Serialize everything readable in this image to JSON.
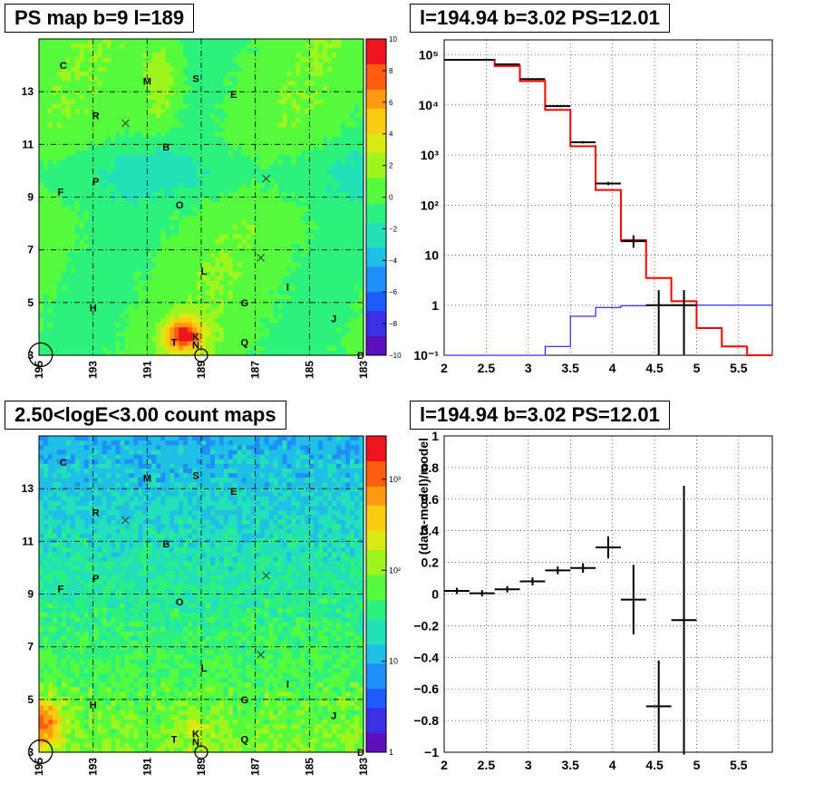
{
  "titles": {
    "ps_map": "PS map b=9 l=189",
    "spectrum": "l=194.94 b=3.02 PS=12.01",
    "count_map": "2.50<logE<3.00 count maps",
    "residual": "l=194.94 b=3.02 PS=12.01"
  },
  "chart_data": [
    {
      "type": "heatmap",
      "title": "PS map b=9 l=189",
      "xlabel": "",
      "ylabel": "",
      "x_ticks": [
        "195",
        "193",
        "191",
        "189",
        "187",
        "185",
        "183"
      ],
      "y_ticks": [
        "3",
        "5",
        "7",
        "9",
        "11",
        "13"
      ],
      "xlim": [
        195,
        183
      ],
      "ylim": [
        3,
        15
      ],
      "colorbar": {
        "min": -10,
        "max": 10,
        "scale": "linear",
        "ticks": [
          "10",
          "8",
          "6",
          "4",
          "2",
          "0",
          "−2",
          "−4",
          "−6",
          "−8",
          "−10"
        ]
      },
      "grid": true,
      "source_labels": [
        {
          "text": "C",
          "l": 194.1,
          "b": 14.0
        },
        {
          "text": "M",
          "l": 191.0,
          "b": 13.4
        },
        {
          "text": "S",
          "l": 189.2,
          "b": 13.5
        },
        {
          "text": "E",
          "l": 187.8,
          "b": 12.9
        },
        {
          "text": "R",
          "l": 192.9,
          "b": 12.1
        },
        {
          "text": "B",
          "l": 190.3,
          "b": 10.9
        },
        {
          "text": "P",
          "l": 192.9,
          "b": 9.6
        },
        {
          "text": "F",
          "l": 194.2,
          "b": 9.2
        },
        {
          "text": "O",
          "l": 189.8,
          "b": 8.7
        },
        {
          "text": "L",
          "l": 188.9,
          "b": 6.2
        },
        {
          "text": "I",
          "l": 185.8,
          "b": 5.6
        },
        {
          "text": "H",
          "l": 193.0,
          "b": 4.8
        },
        {
          "text": "G",
          "l": 187.4,
          "b": 5.0
        },
        {
          "text": "J",
          "l": 184.1,
          "b": 4.4
        },
        {
          "text": "T",
          "l": 190.0,
          "b": 3.5
        },
        {
          "text": "K",
          "l": 189.2,
          "b": 3.7
        },
        {
          "text": "Q",
          "l": 187.4,
          "b": 3.5
        },
        {
          "text": "N",
          "l": 189.2,
          "b": 3.4
        },
        {
          "text": "D",
          "l": 183.1,
          "b": 3.0
        }
      ],
      "cross_markers": [
        {
          "l": 191.8,
          "b": 11.8
        },
        {
          "l": 186.6,
          "b": 9.7
        },
        {
          "l": 186.8,
          "b": 6.7
        }
      ],
      "circle_markers": [
        {
          "l": 194.94,
          "b": 3.02
        },
        {
          "l": 189.0,
          "b": 3.0
        }
      ],
      "hotspot": {
        "l": 190.3,
        "b": 4.4,
        "value": 10
      }
    },
    {
      "type": "line",
      "title": "l=194.94 b=3.02 PS=12.01",
      "xlabel": "",
      "ylabel": "",
      "xlim": [
        2,
        5.9
      ],
      "ylim": [
        0.1,
        200000
      ],
      "y_scale": "log",
      "x_ticks": [
        "2",
        "2.5",
        "3",
        "3.5",
        "4",
        "4.5",
        "5",
        "5.5"
      ],
      "y_ticks": [
        "10⁻¹",
        "1",
        "10",
        "10²",
        "10³",
        "10⁴",
        "10⁵"
      ],
      "grid": true,
      "bin_edges": [
        2.0,
        2.3,
        2.6,
        2.9,
        3.2,
        3.5,
        3.8,
        4.1,
        4.4,
        4.7,
        5.0,
        5.3,
        5.6,
        5.9
      ],
      "series": [
        {
          "color": "#ff0000",
          "style": "step",
          "values": [
            80000,
            80000,
            60000,
            30000,
            8000,
            1500,
            200,
            20,
            3.5,
            1.2,
            0.35,
            0.15,
            0.1
          ]
        },
        {
          "color": "#0000ff",
          "style": "step",
          "values": [
            0.1,
            0.1,
            0.1,
            0.1,
            0.15,
            0.6,
            0.9,
            0.98,
            1.0,
            1.0,
            1.0,
            1.0,
            1.0
          ]
        },
        {
          "color": "#000000",
          "style": "errorbar",
          "points": [
            {
              "x": 2.15,
              "y": 80000,
              "ylo": 80000,
              "yhi": 80000
            },
            {
              "x": 2.45,
              "y": 80000,
              "ylo": 80000,
              "yhi": 80000
            },
            {
              "x": 2.75,
              "y": 65000,
              "ylo": 64000,
              "yhi": 66000
            },
            {
              "x": 3.05,
              "y": 33000,
              "ylo": 32000,
              "yhi": 34000
            },
            {
              "x": 3.35,
              "y": 9500,
              "ylo": 9200,
              "yhi": 9800
            },
            {
              "x": 3.65,
              "y": 1800,
              "ylo": 1700,
              "yhi": 1900
            },
            {
              "x": 3.95,
              "y": 270,
              "ylo": 250,
              "yhi": 290
            },
            {
              "x": 4.25,
              "y": 19,
              "ylo": 14,
              "yhi": 25
            },
            {
              "x": 4.55,
              "y": 1,
              "ylo": 0.1,
              "yhi": 2
            },
            {
              "x": 4.85,
              "y": 1,
              "ylo": 0.1,
              "yhi": 2
            }
          ]
        }
      ]
    },
    {
      "type": "heatmap",
      "title": "2.50<logE<3.00 count maps",
      "xlabel": "",
      "ylabel": "",
      "x_ticks": [
        "195",
        "193",
        "191",
        "189",
        "187",
        "185",
        "183"
      ],
      "y_ticks": [
        "3",
        "5",
        "7",
        "9",
        "11",
        "13"
      ],
      "xlim": [
        195,
        183
      ],
      "ylim": [
        3,
        15
      ],
      "colorbar": {
        "min": 1,
        "max": 3000,
        "scale": "log",
        "ticks": [
          "10³",
          "10²",
          "10",
          "1"
        ]
      },
      "grid": true,
      "source_labels": [
        {
          "text": "C",
          "l": 194.1,
          "b": 14.0
        },
        {
          "text": "M",
          "l": 191.0,
          "b": 13.4
        },
        {
          "text": "S",
          "l": 189.2,
          "b": 13.5
        },
        {
          "text": "E",
          "l": 187.8,
          "b": 12.9
        },
        {
          "text": "R",
          "l": 192.9,
          "b": 12.1
        },
        {
          "text": "B",
          "l": 190.3,
          "b": 10.9
        },
        {
          "text": "P",
          "l": 192.9,
          "b": 9.6
        },
        {
          "text": "F",
          "l": 194.2,
          "b": 9.2
        },
        {
          "text": "O",
          "l": 189.8,
          "b": 8.7
        },
        {
          "text": "L",
          "l": 188.9,
          "b": 6.2
        },
        {
          "text": "I",
          "l": 185.8,
          "b": 5.6
        },
        {
          "text": "H",
          "l": 193.0,
          "b": 4.8
        },
        {
          "text": "G",
          "l": 187.4,
          "b": 5.0
        },
        {
          "text": "J",
          "l": 184.1,
          "b": 4.4
        },
        {
          "text": "T",
          "l": 190.0,
          "b": 3.5
        },
        {
          "text": "K",
          "l": 189.2,
          "b": 3.7
        },
        {
          "text": "Q",
          "l": 187.4,
          "b": 3.5
        },
        {
          "text": "N",
          "l": 189.2,
          "b": 3.4
        },
        {
          "text": "D",
          "l": 183.1,
          "b": 3.0
        }
      ],
      "cross_markers": [
        {
          "l": 191.8,
          "b": 11.8
        },
        {
          "l": 186.6,
          "b": 9.7
        },
        {
          "l": 186.8,
          "b": 6.7
        }
      ],
      "circle_markers": [
        {
          "l": 194.94,
          "b": 3.02
        },
        {
          "l": 189.0,
          "b": 3.0
        }
      ]
    },
    {
      "type": "scatter",
      "title": "l=194.94 b=3.02 PS=12.01",
      "xlabel": "",
      "ylabel": "(data-model)/model",
      "xlim": [
        2,
        5.9
      ],
      "ylim": [
        -1,
        1
      ],
      "x_ticks": [
        "2",
        "2.5",
        "3",
        "3.5",
        "4",
        "4.5",
        "5",
        "5.5"
      ],
      "y_ticks": [
        "1",
        "0.8",
        "0.6",
        "0.4",
        "0.2",
        "0",
        "−0.2",
        "−0.4",
        "−0.6",
        "−0.8",
        "−1"
      ],
      "grid": true,
      "points": [
        {
          "x": 2.15,
          "y": 0.02,
          "xerr": 0.15,
          "yerr": 0.02
        },
        {
          "x": 2.45,
          "y": 0.005,
          "xerr": 0.15,
          "yerr": 0.02
        },
        {
          "x": 2.75,
          "y": 0.03,
          "xerr": 0.15,
          "yerr": 0.02
        },
        {
          "x": 3.05,
          "y": 0.08,
          "xerr": 0.15,
          "yerr": 0.025
        },
        {
          "x": 3.35,
          "y": 0.15,
          "xerr": 0.15,
          "yerr": 0.025
        },
        {
          "x": 3.65,
          "y": 0.165,
          "xerr": 0.15,
          "yerr": 0.03
        },
        {
          "x": 3.95,
          "y": 0.295,
          "xerr": 0.15,
          "yerr": 0.07
        },
        {
          "x": 4.25,
          "y": -0.035,
          "xerr": 0.15,
          "yerr": 0.22
        },
        {
          "x": 4.55,
          "y": -0.71,
          "xerr": 0.15,
          "yerr": 0.29
        },
        {
          "x": 4.85,
          "y": -0.165,
          "xerr": 0.15,
          "yerr": 0.85
        }
      ]
    }
  ]
}
